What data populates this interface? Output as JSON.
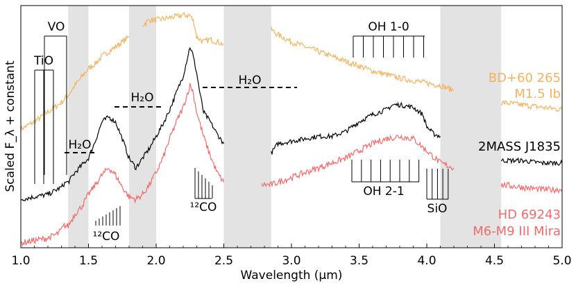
{
  "chart_data": {
    "type": "line",
    "title": "",
    "xlabel": "Wavelength (μm)",
    "ylabel": "Scaled F_λ + constant",
    "xlim": [
      1.0,
      5.0
    ],
    "ylim": [
      0,
      1
    ],
    "grid": false,
    "x_ticks": [
      "1.0",
      "1.5",
      "2.0",
      "2.5",
      "3.0",
      "3.5",
      "4.0",
      "4.5",
      "5.0"
    ],
    "shaded_bands": [
      [
        1.35,
        1.5
      ],
      [
        1.8,
        2.0
      ],
      [
        2.5,
        2.85
      ],
      [
        4.1,
        4.55
      ]
    ],
    "series": [
      {
        "name": "BD+60 265 M1.5 Ib",
        "label_lines": [
          "BD+60 265",
          "M1.5 Ib"
        ],
        "color": "#f5b25c",
        "noise": 0.012,
        "segments": [
          [
            [
              1.0,
              0.49
            ],
            [
              1.1,
              0.52
            ],
            [
              1.2,
              0.56
            ],
            [
              1.3,
              0.6
            ],
            [
              1.35,
              0.63
            ],
            [
              1.4,
              0.67
            ],
            [
              1.5,
              0.74
            ],
            [
              1.55,
              0.76
            ],
            [
              1.6,
              0.79
            ],
            [
              1.65,
              0.81
            ],
            [
              1.75,
              0.85
            ],
            [
              1.8,
              0.87
            ]
          ],
          [
            [
              1.9,
              0.92
            ],
            [
              1.95,
              0.94
            ],
            [
              2.0,
              0.94
            ],
            [
              2.1,
              0.95
            ],
            [
              2.2,
              0.96
            ],
            [
              2.25,
              0.96
            ],
            [
              2.28,
              0.93
            ],
            [
              2.3,
              0.87
            ],
            [
              2.35,
              0.85
            ],
            [
              2.4,
              0.86
            ],
            [
              2.45,
              0.85
            ],
            [
              2.5,
              0.84
            ]
          ],
          [
            [
              2.85,
              0.9
            ],
            [
              2.9,
              0.88
            ],
            [
              3.0,
              0.85
            ],
            [
              3.2,
              0.81
            ],
            [
              3.4,
              0.77
            ],
            [
              3.6,
              0.73
            ],
            [
              3.8,
              0.7
            ],
            [
              4.0,
              0.68
            ],
            [
              4.1,
              0.67
            ],
            [
              4.2,
              0.65
            ]
          ],
          [
            [
              4.55,
              0.6
            ],
            [
              4.7,
              0.59
            ],
            [
              4.85,
              0.58
            ],
            [
              5.0,
              0.57
            ]
          ]
        ]
      },
      {
        "name": "2MASS J1835",
        "label_lines": [
          "2MASS J1835"
        ],
        "color": "#000000",
        "noise": 0.01,
        "segments": [
          [
            [
              1.0,
              0.2
            ],
            [
              1.1,
              0.21
            ],
            [
              1.2,
              0.22
            ],
            [
              1.3,
              0.25
            ],
            [
              1.33,
              0.27
            ],
            [
              1.35,
              0.27
            ],
            [
              1.4,
              0.31
            ],
            [
              1.45,
              0.34
            ],
            [
              1.5,
              0.37
            ],
            [
              1.55,
              0.44
            ],
            [
              1.6,
              0.52
            ],
            [
              1.65,
              0.54
            ],
            [
              1.7,
              0.52
            ],
            [
              1.75,
              0.45
            ],
            [
              1.8,
              0.37
            ],
            [
              1.85,
              0.33
            ],
            [
              1.9,
              0.37
            ],
            [
              1.95,
              0.41
            ],
            [
              2.0,
              0.46
            ],
            [
              2.05,
              0.51
            ],
            [
              2.1,
              0.57
            ],
            [
              2.15,
              0.64
            ],
            [
              2.2,
              0.71
            ],
            [
              2.25,
              0.83
            ],
            [
              2.27,
              0.8
            ],
            [
              2.3,
              0.72
            ],
            [
              2.32,
              0.65
            ],
            [
              2.35,
              0.56
            ],
            [
              2.4,
              0.52
            ],
            [
              2.45,
              0.47
            ],
            [
              2.5,
              0.43
            ]
          ],
          [
            [
              2.85,
              0.39
            ],
            [
              2.9,
              0.43
            ],
            [
              3.0,
              0.44
            ],
            [
              3.1,
              0.45
            ],
            [
              3.2,
              0.46
            ],
            [
              3.3,
              0.46
            ],
            [
              3.4,
              0.48
            ],
            [
              3.5,
              0.52
            ],
            [
              3.6,
              0.55
            ],
            [
              3.7,
              0.57
            ],
            [
              3.75,
              0.59
            ],
            [
              3.8,
              0.59
            ],
            [
              3.9,
              0.58
            ],
            [
              3.97,
              0.55
            ],
            [
              4.0,
              0.5
            ],
            [
              4.05,
              0.47
            ],
            [
              4.1,
              0.46
            ]
          ],
          [
            [
              4.55,
              0.36
            ],
            [
              4.7,
              0.36
            ],
            [
              4.85,
              0.35
            ],
            [
              5.0,
              0.35
            ]
          ]
        ]
      },
      {
        "name": "HD 69243 M6-M9 III Mira",
        "label_lines": [
          "HD 69243",
          "M6-M9 III Mira"
        ],
        "color": "#f26a6a",
        "noise": 0.013,
        "segments": [
          [
            [
              1.0,
              0.02
            ],
            [
              1.1,
              0.03
            ],
            [
              1.2,
              0.04
            ],
            [
              1.28,
              0.06
            ],
            [
              1.32,
              0.09
            ],
            [
              1.35,
              0.09
            ],
            [
              1.4,
              0.14
            ],
            [
              1.45,
              0.17
            ],
            [
              1.5,
              0.22
            ],
            [
              1.55,
              0.26
            ],
            [
              1.6,
              0.3
            ],
            [
              1.65,
              0.33
            ],
            [
              1.7,
              0.3
            ],
            [
              1.75,
              0.25
            ],
            [
              1.8,
              0.21
            ],
            [
              1.85,
              0.2
            ],
            [
              1.9,
              0.22
            ],
            [
              1.95,
              0.26
            ],
            [
              2.0,
              0.31
            ],
            [
              2.05,
              0.37
            ],
            [
              2.1,
              0.45
            ],
            [
              2.15,
              0.52
            ],
            [
              2.2,
              0.58
            ],
            [
              2.25,
              0.67
            ],
            [
              2.27,
              0.65
            ],
            [
              2.3,
              0.56
            ],
            [
              2.35,
              0.46
            ],
            [
              2.4,
              0.38
            ],
            [
              2.45,
              0.31
            ],
            [
              2.5,
              0.27
            ]
          ],
          [
            [
              2.78,
              0.26
            ],
            [
              2.85,
              0.26
            ],
            [
              2.9,
              0.27
            ],
            [
              3.0,
              0.29
            ],
            [
              3.1,
              0.31
            ],
            [
              3.2,
              0.33
            ],
            [
              3.3,
              0.35
            ],
            [
              3.4,
              0.37
            ],
            [
              3.5,
              0.4
            ],
            [
              3.6,
              0.43
            ],
            [
              3.7,
              0.45
            ],
            [
              3.8,
              0.46
            ],
            [
              3.9,
              0.45
            ],
            [
              4.0,
              0.4
            ],
            [
              4.1,
              0.35
            ],
            [
              4.2,
              0.33
            ]
          ],
          [
            [
              4.55,
              0.26
            ],
            [
              4.7,
              0.25
            ],
            [
              4.85,
              0.24
            ],
            [
              5.0,
              0.24
            ]
          ]
        ]
      }
    ],
    "annotations": {
      "tio": {
        "label": "TiO"
      },
      "vo": {
        "label": "VO"
      },
      "h2o_1": {
        "label": "H₂O"
      },
      "h2o_2": {
        "label": "H₂O"
      },
      "h2o_3": {
        "label": "H₂O"
      },
      "co_1": {
        "label": "¹²CO"
      },
      "co_2": {
        "label": "¹²CO"
      },
      "oh_10": {
        "label": "OH 1-0"
      },
      "oh_21": {
        "label": "OH 2-1"
      },
      "sio": {
        "label": "SiO"
      }
    }
  }
}
